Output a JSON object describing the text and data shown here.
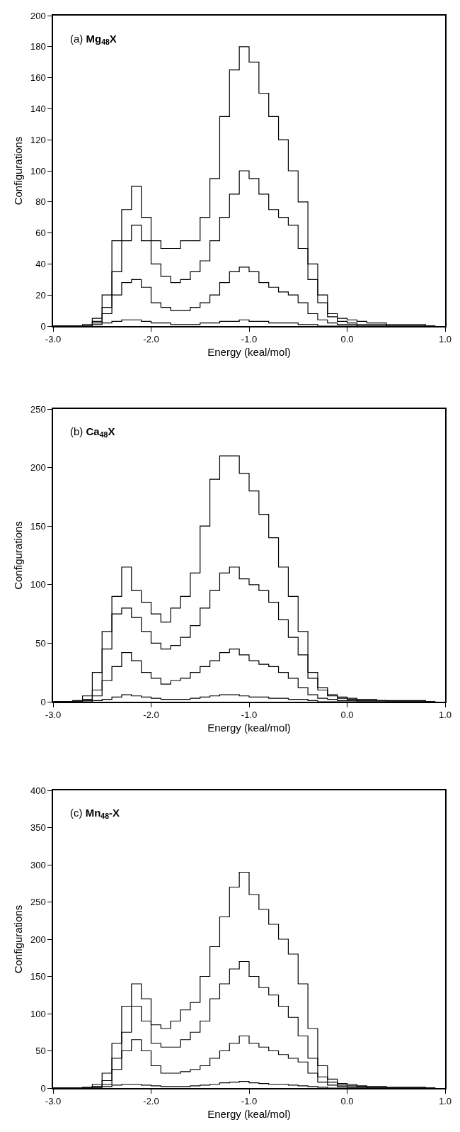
{
  "chart_data": [
    {
      "type": "step",
      "title": "(a) Mg$_{48}$X",
      "xlabel": "Energy (keal/mol)",
      "ylabel": "Configurations",
      "x": [
        -3.0,
        -2.9,
        -2.8,
        -2.7,
        -2.6,
        -2.5,
        -2.4,
        -2.3,
        -2.2,
        -2.1,
        -2.0,
        -1.9,
        -1.8,
        -1.7,
        -1.6,
        -1.5,
        -1.4,
        -1.3,
        -1.2,
        -1.1,
        -1.0,
        -0.9,
        -0.8,
        -0.7,
        -0.6,
        -0.5,
        -0.4,
        -0.3,
        -0.2,
        -0.1,
        0.0,
        0.1,
        0.2,
        0.3,
        0.4,
        0.5,
        0.6,
        0.7,
        0.8,
        0.9
      ],
      "series": [
        {
          "color": "#000000",
          "values": [
            0,
            0,
            0,
            1,
            5,
            20,
            55,
            75,
            90,
            70,
            55,
            50,
            50,
            55,
            55,
            70,
            95,
            135,
            165,
            180,
            170,
            150,
            135,
            120,
            100,
            80,
            40,
            20,
            8,
            5,
            4,
            3,
            2,
            2,
            1,
            1,
            1,
            1,
            0,
            0
          ]
        },
        {
          "color": "#000000",
          "values": [
            0,
            0,
            0,
            0,
            3,
            12,
            35,
            55,
            65,
            55,
            40,
            32,
            28,
            30,
            35,
            42,
            55,
            70,
            85,
            100,
            95,
            85,
            75,
            70,
            65,
            50,
            30,
            15,
            6,
            3,
            2,
            1,
            1,
            1,
            0,
            0,
            0,
            0,
            0,
            0
          ]
        },
        {
          "color": "#000000",
          "values": [
            0,
            0,
            0,
            0,
            2,
            8,
            20,
            28,
            30,
            25,
            15,
            12,
            10,
            10,
            12,
            15,
            20,
            28,
            35,
            38,
            35,
            28,
            25,
            22,
            20,
            15,
            8,
            4,
            2,
            1,
            1,
            0,
            0,
            0,
            0,
            0,
            0,
            0,
            0,
            0
          ]
        },
        {
          "color": "#000000",
          "values": [
            0,
            0,
            0,
            0,
            1,
            2,
            3,
            4,
            4,
            3,
            2,
            2,
            1,
            1,
            1,
            2,
            2,
            3,
            3,
            4,
            3,
            3,
            2,
            2,
            2,
            1,
            1,
            0,
            0,
            0,
            0,
            0,
            0,
            0,
            0,
            0,
            0,
            0,
            0,
            0
          ]
        }
      ],
      "xlim": [
        -3.0,
        1.0
      ],
      "xticks": [
        {
          "value": -3.0,
          "label": "-3.0"
        },
        {
          "value": -2.0,
          "label": "-2.0"
        },
        {
          "value": -1.0,
          "label": "-1.0"
        },
        {
          "value": 0.0,
          "label": "0.0"
        },
        {
          "value": 1.0,
          "label": "1.0"
        }
      ],
      "ylim": [
        0,
        200
      ],
      "yticks": [
        0,
        20,
        40,
        60,
        80,
        100,
        120,
        140,
        160,
        180,
        200
      ]
    },
    {
      "type": "step",
      "title": "(b) Ca$_{48}$X",
      "xlabel": "Energy (keal/mol)",
      "ylabel": "Configurations",
      "x": [
        -3.0,
        -2.9,
        -2.8,
        -2.7,
        -2.6,
        -2.5,
        -2.4,
        -2.3,
        -2.2,
        -2.1,
        -2.0,
        -1.9,
        -1.8,
        -1.7,
        -1.6,
        -1.5,
        -1.4,
        -1.3,
        -1.2,
        -1.1,
        -1.0,
        -0.9,
        -0.8,
        -0.7,
        -0.6,
        -0.5,
        -0.4,
        -0.3,
        -0.2,
        -0.1,
        0.0,
        0.1,
        0.2,
        0.3,
        0.4,
        0.5,
        0.6,
        0.7,
        0.8,
        0.9
      ],
      "series": [
        {
          "color": "#000000",
          "values": [
            0,
            0,
            1,
            5,
            25,
            60,
            90,
            115,
            95,
            85,
            75,
            68,
            80,
            90,
            110,
            150,
            190,
            210,
            210,
            195,
            180,
            160,
            140,
            115,
            90,
            60,
            25,
            12,
            6,
            4,
            3,
            2,
            2,
            1,
            1,
            1,
            1,
            1,
            0,
            0
          ]
        },
        {
          "color": "#000000",
          "values": [
            0,
            0,
            0,
            2,
            10,
            45,
            75,
            80,
            72,
            60,
            50,
            45,
            48,
            55,
            65,
            80,
            95,
            110,
            115,
            105,
            100,
            95,
            85,
            70,
            55,
            40,
            20,
            10,
            5,
            3,
            2,
            1,
            1,
            1,
            0,
            0,
            0,
            0,
            0,
            0
          ]
        },
        {
          "color": "#000000",
          "values": [
            0,
            0,
            0,
            1,
            5,
            18,
            30,
            42,
            35,
            25,
            20,
            15,
            18,
            20,
            25,
            30,
            35,
            42,
            45,
            40,
            35,
            32,
            30,
            25,
            20,
            12,
            6,
            3,
            2,
            1,
            1,
            0,
            0,
            0,
            0,
            0,
            0,
            0,
            0,
            0
          ]
        },
        {
          "color": "#000000",
          "values": [
            0,
            0,
            0,
            0,
            1,
            2,
            4,
            6,
            5,
            4,
            3,
            2,
            2,
            2,
            3,
            4,
            5,
            6,
            6,
            5,
            4,
            4,
            3,
            3,
            2,
            2,
            1,
            0,
            0,
            0,
            0,
            0,
            0,
            0,
            0,
            0,
            0,
            0,
            0,
            0
          ]
        }
      ],
      "xlim": [
        -3.0,
        1.0
      ],
      "xticks": [
        {
          "value": -3.0,
          "label": "-3.0"
        },
        {
          "value": -2.0,
          "label": "-2.0"
        },
        {
          "value": -1.0,
          "label": "-1.0"
        },
        {
          "value": 0.0,
          "label": "0.0"
        },
        {
          "value": 1.0,
          "label": "1.0"
        }
      ],
      "ylim": [
        0,
        250
      ],
      "yticks": [
        0,
        50,
        100,
        150,
        200,
        250
      ]
    },
    {
      "type": "step",
      "title": "(c) Mn$_{48}$-X",
      "xlabel": "Energy (keal/mol)",
      "ylabel": "Configurations",
      "x": [
        -3.0,
        -2.9,
        -2.8,
        -2.7,
        -2.6,
        -2.5,
        -2.4,
        -2.3,
        -2.2,
        -2.1,
        -2.0,
        -1.9,
        -1.8,
        -1.7,
        -1.6,
        -1.5,
        -1.4,
        -1.3,
        -1.2,
        -1.1,
        -1.0,
        -0.9,
        -0.8,
        -0.7,
        -0.6,
        -0.5,
        -0.4,
        -0.3,
        -0.2,
        -0.1,
        0.0,
        0.1,
        0.2,
        0.3,
        0.4,
        0.5,
        0.6,
        0.7,
        0.8,
        0.9
      ],
      "series": [
        {
          "color": "#000000",
          "values": [
            0,
            0,
            0,
            1,
            5,
            20,
            60,
            110,
            140,
            120,
            85,
            80,
            90,
            105,
            115,
            150,
            190,
            230,
            270,
            290,
            260,
            240,
            220,
            200,
            180,
            140,
            80,
            30,
            12,
            6,
            5,
            3,
            2,
            2,
            1,
            1,
            1,
            1,
            0,
            0
          ]
        },
        {
          "color": "#000000",
          "values": [
            0,
            0,
            0,
            0,
            2,
            10,
            40,
            75,
            110,
            90,
            60,
            55,
            55,
            65,
            75,
            90,
            120,
            140,
            160,
            170,
            150,
            135,
            125,
            110,
            95,
            70,
            40,
            15,
            8,
            4,
            3,
            2,
            1,
            1,
            0,
            0,
            0,
            0,
            0,
            0
          ]
        },
        {
          "color": "#000000",
          "values": [
            0,
            0,
            0,
            0,
            1,
            5,
            25,
            50,
            65,
            50,
            30,
            20,
            20,
            22,
            25,
            30,
            40,
            50,
            60,
            70,
            60,
            55,
            50,
            45,
            40,
            35,
            20,
            8,
            4,
            2,
            1,
            1,
            0,
            0,
            0,
            0,
            0,
            0,
            0,
            0
          ]
        },
        {
          "color": "#000000",
          "values": [
            0,
            0,
            0,
            0,
            1,
            2,
            4,
            5,
            5,
            4,
            3,
            2,
            2,
            2,
            3,
            4,
            5,
            7,
            8,
            9,
            7,
            6,
            5,
            5,
            4,
            3,
            2,
            1,
            0,
            0,
            0,
            0,
            0,
            0,
            0,
            0,
            0,
            0,
            0,
            0
          ]
        }
      ],
      "xlim": [
        -3.0,
        1.0
      ],
      "xticks": [
        {
          "value": -3.0,
          "label": "-3.0"
        },
        {
          "value": -2.0,
          "label": "-2.0"
        },
        {
          "value": -1.0,
          "label": "-1.0"
        },
        {
          "value": 0.0,
          "label": "0.0"
        },
        {
          "value": 1.0,
          "label": "1.0"
        }
      ],
      "ylim": [
        0,
        400
      ],
      "yticks": [
        0,
        50,
        100,
        150,
        200,
        250,
        300,
        350,
        400
      ]
    }
  ]
}
